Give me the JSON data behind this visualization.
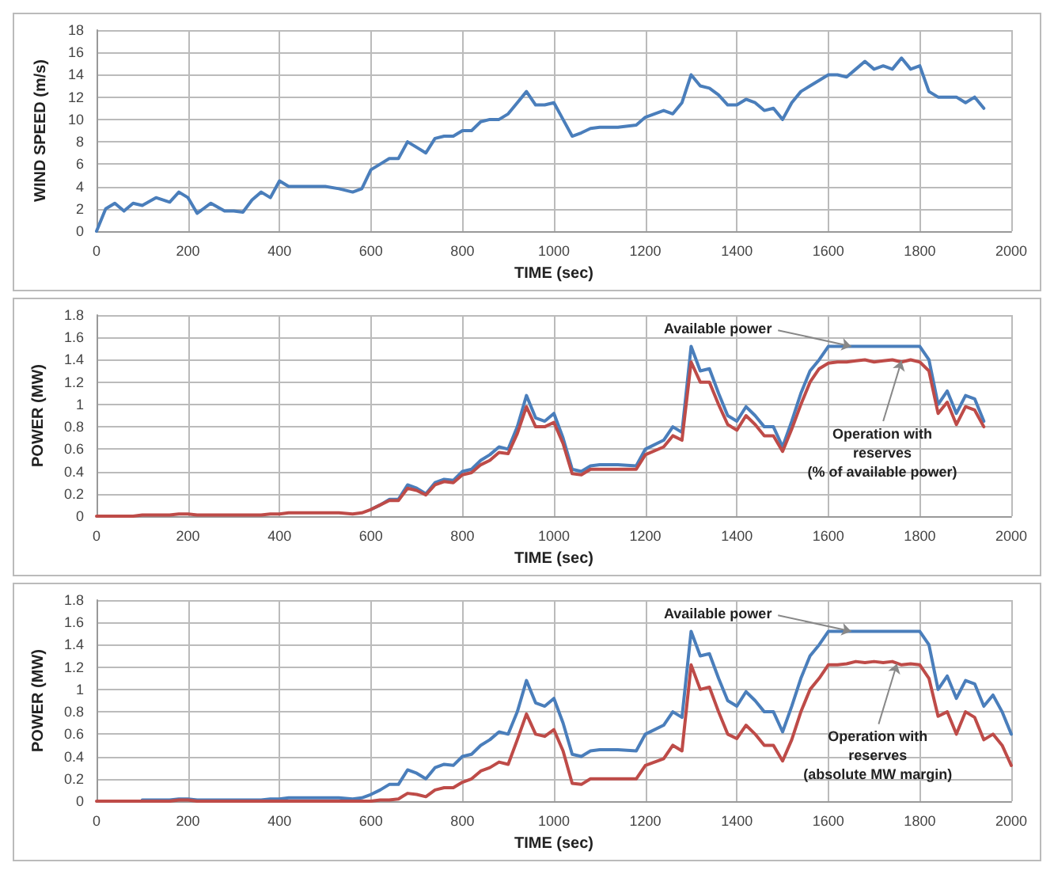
{
  "chart_data": [
    {
      "type": "line",
      "xlabel": "TIME (sec)",
      "ylabel": "WIND SPEED (m/s)",
      "xlim": [
        0,
        2000
      ],
      "xticks": [
        0,
        200,
        400,
        600,
        800,
        1000,
        1200,
        1400,
        1600,
        1800,
        2000
      ],
      "ylim": [
        0,
        18
      ],
      "yticks": [
        0,
        2,
        4,
        6,
        8,
        10,
        12,
        14,
        16,
        18
      ],
      "grid": true,
      "marker": "none",
      "line_style": "solid",
      "x": [
        0,
        20,
        40,
        60,
        80,
        100,
        130,
        160,
        180,
        200,
        220,
        250,
        280,
        300,
        320,
        340,
        360,
        380,
        400,
        420,
        460,
        500,
        530,
        560,
        580,
        600,
        620,
        640,
        660,
        680,
        700,
        720,
        740,
        760,
        780,
        800,
        820,
        840,
        860,
        880,
        900,
        920,
        940,
        960,
        980,
        1000,
        1020,
        1040,
        1060,
        1080,
        1100,
        1140,
        1180,
        1200,
        1240,
        1260,
        1280,
        1300,
        1320,
        1340,
        1360,
        1380,
        1400,
        1420,
        1440,
        1460,
        1480,
        1500,
        1520,
        1540,
        1560,
        1580,
        1600,
        1620,
        1640,
        1660,
        1680,
        1700,
        1720,
        1740,
        1760,
        1780,
        1800,
        1820,
        1840,
        1860,
        1880,
        1900,
        1920,
        1940
      ],
      "series": [
        {
          "color": "#4a7ebb",
          "values": [
            0,
            2,
            2.5,
            1.8,
            2.5,
            2.3,
            3,
            2.6,
            3.5,
            3,
            1.6,
            2.5,
            1.8,
            1.8,
            1.7,
            2.8,
            3.5,
            3,
            4.5,
            4,
            4,
            4,
            3.8,
            3.5,
            3.8,
            5.5,
            6,
            6.5,
            6.5,
            8,
            7.5,
            7,
            8.3,
            8.5,
            8.5,
            9,
            9,
            9.8,
            10,
            10,
            10.5,
            11.5,
            12.5,
            11.3,
            11.3,
            11.5,
            10,
            8.5,
            8.8,
            9.2,
            9.3,
            9.3,
            9.5,
            10.2,
            10.8,
            10.5,
            11.5,
            14,
            13,
            12.8,
            12.2,
            11.3,
            11.3,
            11.8,
            11.5,
            10.8,
            11,
            10,
            11.5,
            12.5,
            13,
            13.5,
            14,
            14,
            13.8,
            14.5,
            15.2,
            14.5,
            14.8,
            14.5,
            15.5,
            14.5,
            14.8,
            12.5,
            12,
            12,
            12,
            11.5,
            12,
            11
          ]
        }
      ]
    },
    {
      "type": "line",
      "xlabel": "TIME (sec)",
      "ylabel": "POWER (MW)",
      "xlim": [
        0,
        2000
      ],
      "xticks": [
        0,
        200,
        400,
        600,
        800,
        1000,
        1200,
        1400,
        1600,
        1800,
        2000
      ],
      "ylim": [
        0,
        1.8
      ],
      "yticks": [
        0,
        0.2,
        0.4,
        0.6,
        0.8,
        1,
        1.2,
        1.4,
        1.6,
        1.8
      ],
      "grid": true,
      "marker": "none",
      "line_style": "solid",
      "annotations": [
        {
          "text": "Available power",
          "x": 1650,
          "y": 1.52
        },
        {
          "text": "Operation with\nreserves\n(% of available power)",
          "x": 1760,
          "y": 1.39
        }
      ],
      "x": [
        0,
        20,
        40,
        60,
        80,
        100,
        130,
        160,
        180,
        200,
        220,
        250,
        280,
        300,
        320,
        340,
        360,
        380,
        400,
        420,
        460,
        500,
        530,
        560,
        580,
        600,
        620,
        640,
        660,
        680,
        700,
        720,
        740,
        760,
        780,
        800,
        820,
        840,
        860,
        880,
        900,
        920,
        940,
        960,
        980,
        1000,
        1020,
        1040,
        1060,
        1080,
        1100,
        1140,
        1180,
        1200,
        1240,
        1260,
        1280,
        1300,
        1320,
        1340,
        1360,
        1380,
        1400,
        1420,
        1440,
        1460,
        1480,
        1500,
        1520,
        1540,
        1560,
        1580,
        1600,
        1620,
        1640,
        1660,
        1680,
        1700,
        1720,
        1740,
        1760,
        1780,
        1800,
        1820,
        1840,
        1860,
        1880,
        1900,
        1920,
        1940
      ],
      "series": [
        {
          "color": "#4a7ebb",
          "values": [
            null,
            null,
            null,
            null,
            null,
            null,
            null,
            null,
            null,
            null,
            null,
            null,
            null,
            null,
            null,
            null,
            null,
            null,
            null,
            null,
            null,
            null,
            null,
            null,
            null,
            0.06,
            0.1,
            0.15,
            0.15,
            0.28,
            0.25,
            0.2,
            0.3,
            0.33,
            0.32,
            0.4,
            0.42,
            0.5,
            0.55,
            0.62,
            0.6,
            0.8,
            1.08,
            0.88,
            0.85,
            0.92,
            0.7,
            0.42,
            0.4,
            0.45,
            0.46,
            0.46,
            0.45,
            0.6,
            0.68,
            0.8,
            0.75,
            1.52,
            1.3,
            1.32,
            1.1,
            0.9,
            0.85,
            0.98,
            0.9,
            0.8,
            0.8,
            0.62,
            0.85,
            1.1,
            1.3,
            1.4,
            1.52,
            1.52,
            1.52,
            1.52,
            1.52,
            1.52,
            1.52,
            1.52,
            1.52,
            1.52,
            1.52,
            1.4,
            1,
            1.12,
            0.92,
            1.08,
            1.05,
            0.85
          ]
        },
        {
          "color": "#be4b48",
          "values": [
            0,
            0,
            0,
            0,
            0,
            0.01,
            0.01,
            0.01,
            0.02,
            0.02,
            0.01,
            0.01,
            0.01,
            0.01,
            0.01,
            0.01,
            0.01,
            0.02,
            0.02,
            0.03,
            0.03,
            0.03,
            0.03,
            0.02,
            0.03,
            0.06,
            0.1,
            0.14,
            0.14,
            0.25,
            0.23,
            0.19,
            0.28,
            0.31,
            0.3,
            0.37,
            0.39,
            0.46,
            0.5,
            0.57,
            0.56,
            0.74,
            0.98,
            0.8,
            0.8,
            0.84,
            0.65,
            0.38,
            0.37,
            0.42,
            0.42,
            0.42,
            0.42,
            0.55,
            0.62,
            0.72,
            0.68,
            1.38,
            1.2,
            1.2,
            1,
            0.82,
            0.77,
            0.9,
            0.82,
            0.72,
            0.72,
            0.58,
            0.78,
            1,
            1.2,
            1.32,
            1.37,
            1.38,
            1.38,
            1.39,
            1.4,
            1.38,
            1.39,
            1.4,
            1.38,
            1.4,
            1.38,
            1.3,
            0.92,
            1.02,
            0.82,
            0.98,
            0.95,
            0.8
          ]
        }
      ]
    },
    {
      "type": "line",
      "xlabel": "TIME (sec)",
      "ylabel": "POWER (MW)",
      "xlim": [
        0,
        2000
      ],
      "xticks": [
        0,
        200,
        400,
        600,
        800,
        1000,
        1200,
        1400,
        1600,
        1800,
        2000
      ],
      "ylim": [
        0,
        1.8
      ],
      "yticks": [
        0,
        0.2,
        0.4,
        0.6,
        0.8,
        1,
        1.2,
        1.4,
        1.6,
        1.8
      ],
      "grid": true,
      "marker": "none",
      "line_style": "solid",
      "annotations": [
        {
          "text": "Available power",
          "x": 1650,
          "y": 1.52
        },
        {
          "text": "Operation with\nreserves\n(absolute MW margin)",
          "x": 1750,
          "y": 1.23
        }
      ],
      "x": [
        0,
        20,
        40,
        60,
        80,
        100,
        130,
        160,
        180,
        200,
        220,
        250,
        280,
        300,
        320,
        340,
        360,
        380,
        400,
        420,
        460,
        500,
        530,
        560,
        580,
        600,
        620,
        640,
        660,
        680,
        700,
        720,
        740,
        760,
        780,
        800,
        820,
        840,
        860,
        880,
        900,
        920,
        940,
        960,
        980,
        1000,
        1020,
        1040,
        1060,
        1080,
        1100,
        1140,
        1180,
        1200,
        1240,
        1260,
        1280,
        1300,
        1320,
        1340,
        1360,
        1380,
        1400,
        1420,
        1440,
        1460,
        1480,
        1500,
        1520,
        1540,
        1560,
        1580,
        1600,
        1620,
        1640,
        1660,
        1680,
        1700,
        1720,
        1740,
        1760,
        1780,
        1800,
        1820,
        1840,
        1860,
        1880,
        1900,
        1920,
        1940,
        1960,
        1980,
        2000
      ],
      "series": [
        {
          "color": "#4a7ebb",
          "values": [
            null,
            null,
            null,
            null,
            null,
            0.01,
            0.01,
            0.01,
            0.02,
            0.02,
            0.01,
            0.01,
            0.01,
            0.01,
            0.01,
            0.01,
            0.01,
            0.02,
            0.02,
            0.03,
            0.03,
            0.03,
            0.03,
            0.02,
            0.03,
            0.06,
            0.1,
            0.15,
            0.15,
            0.28,
            0.25,
            0.2,
            0.3,
            0.33,
            0.32,
            0.4,
            0.42,
            0.5,
            0.55,
            0.62,
            0.6,
            0.8,
            1.08,
            0.88,
            0.85,
            0.92,
            0.7,
            0.42,
            0.4,
            0.45,
            0.46,
            0.46,
            0.45,
            0.6,
            0.68,
            0.8,
            0.75,
            1.52,
            1.3,
            1.32,
            1.1,
            0.9,
            0.85,
            0.98,
            0.9,
            0.8,
            0.8,
            0.62,
            0.85,
            1.1,
            1.3,
            1.4,
            1.52,
            1.52,
            1.52,
            1.52,
            1.52,
            1.52,
            1.52,
            1.52,
            1.52,
            1.52,
            1.52,
            1.4,
            1,
            1.12,
            0.92,
            1.08,
            1.05,
            0.85,
            0.95,
            0.8,
            0.6
          ]
        },
        {
          "color": "#be4b48",
          "values": [
            0,
            0,
            0,
            0,
            0,
            0,
            0,
            0,
            0.01,
            0.01,
            0,
            0,
            0,
            0,
            0,
            0,
            0,
            0,
            0,
            0,
            0,
            0,
            0,
            0,
            0,
            0,
            0.01,
            0.01,
            0.02,
            0.07,
            0.06,
            0.04,
            0.1,
            0.12,
            0.12,
            0.17,
            0.2,
            0.27,
            0.3,
            0.35,
            0.33,
            0.55,
            0.78,
            0.6,
            0.58,
            0.64,
            0.45,
            0.16,
            0.15,
            0.2,
            0.2,
            0.2,
            0.2,
            0.32,
            0.38,
            0.5,
            0.45,
            1.22,
            1,
            1.02,
            0.8,
            0.6,
            0.56,
            0.68,
            0.6,
            0.5,
            0.5,
            0.36,
            0.55,
            0.8,
            1,
            1.1,
            1.22,
            1.22,
            1.23,
            1.25,
            1.24,
            1.25,
            1.24,
            1.25,
            1.22,
            1.23,
            1.22,
            1.1,
            0.76,
            0.8,
            0.6,
            0.8,
            0.75,
            0.55,
            0.6,
            0.5,
            0.32
          ]
        }
      ]
    }
  ]
}
